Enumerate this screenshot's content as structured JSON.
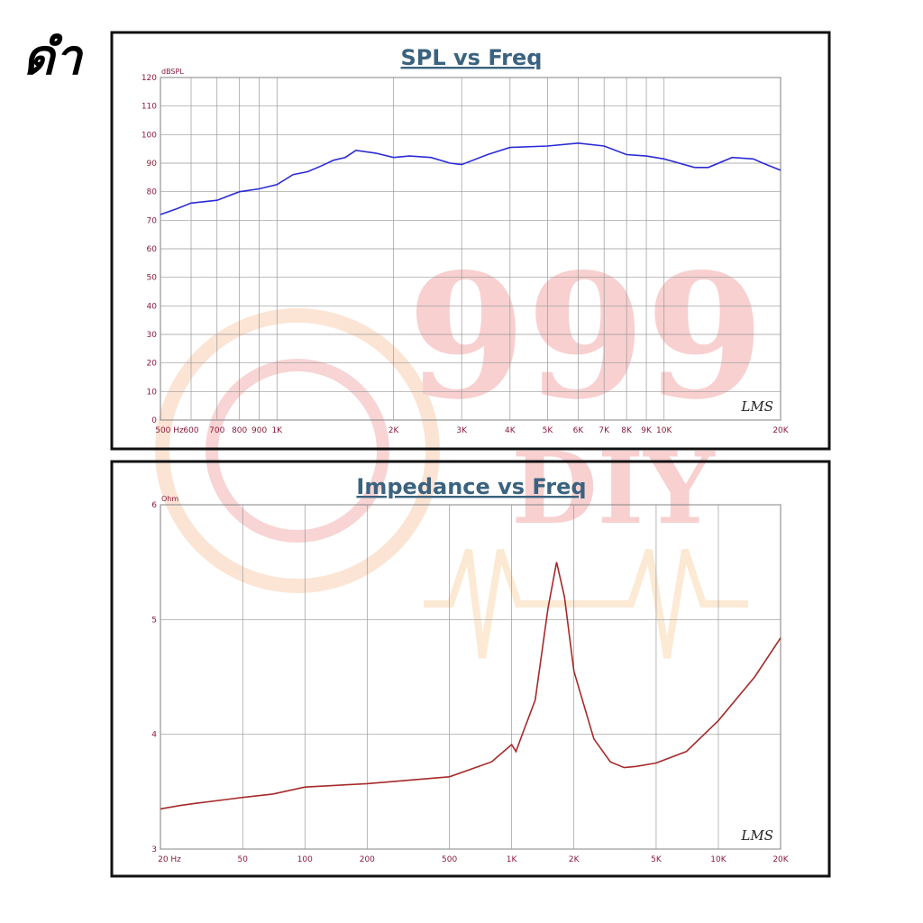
{
  "label": "ดำ",
  "watermark": {
    "digits": "999",
    "brand": "DIY"
  },
  "chart_data": [
    {
      "type": "line",
      "title": "SPL vs Freq",
      "y_label": "dBSPL",
      "logo": "LMS",
      "xscale": "log",
      "grid": true,
      "color": "#2b2bd6",
      "x": [
        500,
        550,
        600,
        700,
        800,
        900,
        1000,
        1100,
        1200,
        1300,
        1400,
        1500,
        1600,
        1800,
        2000,
        2200,
        2500,
        2800,
        3000,
        3500,
        4000,
        5000,
        6000,
        7000,
        8000,
        9000,
        10000,
        12000,
        13000,
        15000,
        17000,
        18000,
        20000
      ],
      "values": [
        72,
        74,
        76,
        77,
        80,
        81,
        82.5,
        86,
        87,
        89,
        91,
        92,
        94.5,
        93.5,
        92,
        92.5,
        92,
        90,
        89.5,
        93,
        95.5,
        96,
        97,
        96,
        93,
        92.5,
        91.5,
        88.5,
        88.5,
        92,
        91.5,
        90,
        87.5
      ],
      "xlim": [
        500,
        20000
      ],
      "xticks": [
        {
          "value": 500,
          "label": "500 Hz"
        },
        600,
        700,
        800,
        900,
        {
          "value": 1000,
          "label": "1K"
        },
        {
          "value": 2000,
          "label": "2K"
        },
        {
          "value": 3000,
          "label": "3K"
        },
        {
          "value": 4000,
          "label": "4K"
        },
        {
          "value": 5000,
          "label": "5K"
        },
        {
          "value": 6000,
          "label": "6K"
        },
        {
          "value": 7000,
          "label": "7K"
        },
        {
          "value": 8000,
          "label": "8K"
        },
        {
          "value": 9000,
          "label": "9K"
        },
        {
          "value": 10000,
          "label": "10K"
        },
        {
          "value": 20000,
          "label": "20K"
        }
      ],
      "ylim": [
        0,
        120
      ],
      "yticks": [
        0,
        10,
        20,
        30,
        40,
        50,
        60,
        70,
        80,
        90,
        100,
        110,
        120
      ]
    },
    {
      "type": "line",
      "title": "Impedance vs Freq",
      "y_label": "Ohm",
      "logo": "LMS",
      "xscale": "log",
      "grid": true,
      "color": "#a52a2a",
      "x": [
        20,
        25,
        30,
        50,
        70,
        100,
        200,
        500,
        800,
        1000,
        1050,
        1100,
        1300,
        1500,
        1650,
        1800,
        2000,
        2500,
        3000,
        3500,
        4000,
        5000,
        7000,
        10000,
        15000,
        20000
      ],
      "values": [
        3.35,
        3.38,
        3.4,
        3.45,
        3.48,
        3.54,
        3.57,
        3.63,
        3.76,
        3.91,
        3.85,
        3.95,
        4.3,
        5.1,
        5.5,
        5.2,
        4.55,
        3.96,
        3.76,
        3.71,
        3.72,
        3.75,
        3.85,
        4.12,
        4.5,
        4.84
      ],
      "xlim": [
        20,
        20000
      ],
      "xticks": [
        {
          "value": 20,
          "label": "20 Hz"
        },
        50,
        100,
        200,
        500,
        {
          "value": 1000,
          "label": "1K"
        },
        {
          "value": 2000,
          "label": "2K"
        },
        {
          "value": 5000,
          "label": "5K"
        },
        {
          "value": 10000,
          "label": "10K"
        },
        {
          "value": 20000,
          "label": "20K"
        }
      ],
      "ylim": [
        3,
        6
      ],
      "yticks": [
        3,
        4,
        5,
        6
      ]
    }
  ]
}
